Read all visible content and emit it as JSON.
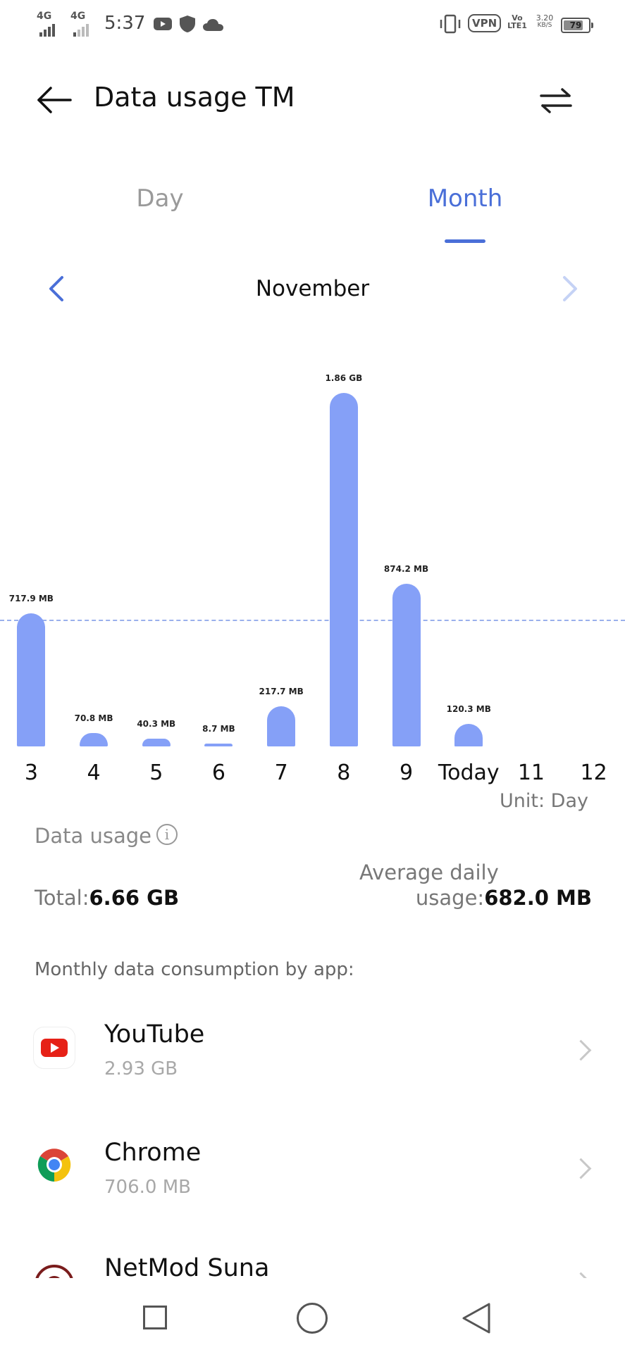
{
  "status_bar": {
    "network1": "4G",
    "network2": "4G",
    "time": "5:37",
    "vpn": "VPN",
    "volte_line1": "Vo",
    "volte_line2": "LTE1",
    "speed_line1": "3.20",
    "speed_line2": "KB/S",
    "battery": "79",
    "battery_level": 0.79
  },
  "header": {
    "title": "Data usage TM"
  },
  "tabs": [
    {
      "label": "Day",
      "active": false
    },
    {
      "label": "Month",
      "active": true
    }
  ],
  "period": {
    "label": "November"
  },
  "chart_data": {
    "type": "bar",
    "categories": [
      "3",
      "4",
      "5",
      "6",
      "7",
      "8",
      "9",
      "Today",
      "11",
      "12"
    ],
    "values": [
      717.9,
      70.8,
      40.3,
      8.7,
      217.7,
      1904.6,
      874.2,
      120.3,
      null,
      null
    ],
    "value_labels": [
      "717.9 MB",
      "70.8 MB",
      "40.3 MB",
      "8.7 MB",
      "217.7 MB",
      "1.86 GB",
      "874.2 MB",
      "120.3 MB",
      "",
      ""
    ],
    "unit": "MB",
    "average_line": 682.0,
    "ylim": [
      0,
      1960
    ],
    "accent": "#85a0f7"
  },
  "chart": {
    "unit_label": "Unit: Day"
  },
  "summary": {
    "section_title": "Data usage",
    "total_label": "Total:",
    "total_value": "6.66 GB",
    "avg_label_line1": "Average daily",
    "avg_label_line2": "usage:",
    "avg_value": "682.0 MB"
  },
  "apps": {
    "heading": "Monthly data consumption by app:",
    "items": [
      {
        "name": "YouTube",
        "size": "2.93 GB",
        "icon": "youtube-icon"
      },
      {
        "name": "Chrome",
        "size": "706.0 MB",
        "icon": "chrome-icon"
      },
      {
        "name": "NetMod Suna",
        "size": "",
        "icon": "netmod-icon"
      }
    ]
  },
  "colors": {
    "accent": "#4a6fd8",
    "bar": "#85a0f7"
  }
}
